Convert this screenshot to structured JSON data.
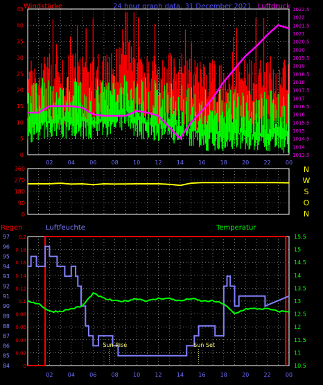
{
  "header": {
    "left_title": "Windstärke",
    "center_title": "24 hour graph data, 31 December 2021",
    "right_title": "Luftdruck"
  },
  "colors": {
    "wind_gust": "#ff0000",
    "wind_avg": "#00ff00",
    "pressure": "#ff00ff",
    "direction": "#ffff00",
    "humidity": "#8080ff",
    "temperature": "#00ff00",
    "rain": "#ff0000",
    "grid": "#ffffff",
    "axis_text_left": "#ff0000",
    "axis_text_right": "#ff00ff",
    "time_labels": "#7070ff",
    "panel_bg": "#000000"
  },
  "chart_data": [
    {
      "type": "bar",
      "name": "wind-and-pressure",
      "title": "24 hour graph data, 31 December 2021",
      "ylabel_left": "Windstärke",
      "ylabel_right": "Luftdruck",
      "x_ticks": [
        "02",
        "04",
        "06",
        "08",
        "10",
        "12",
        "14",
        "16",
        "18",
        "20",
        "22",
        "00"
      ],
      "y_left_ticks": [
        "0",
        "5",
        "10",
        "15",
        "20",
        "25",
        "30",
        "35",
        "40",
        "45"
      ],
      "y_left_range": [
        0,
        45
      ],
      "y_right_ticks": [
        "1013.5",
        "1014",
        "1014.5",
        "1015",
        "1015.5",
        "1016",
        "1016.5",
        "1017",
        "1017.5",
        "1018",
        "1018.5",
        "1019",
        "1019.5",
        "1020",
        "1020.5",
        "1021",
        "1021.5",
        "1022",
        "1022.5"
      ],
      "y_right_range": [
        1013.5,
        1022.5
      ],
      "pressure_series": {
        "hours": [
          0,
          1,
          2,
          3,
          4,
          5,
          6,
          7,
          8,
          9,
          10,
          11,
          12,
          13,
          14,
          15,
          16,
          17,
          18,
          19,
          20,
          21,
          22,
          23,
          24
        ],
        "values": [
          1016.1,
          1016.1,
          1016.5,
          1016.5,
          1016.5,
          1016.4,
          1016.0,
          1015.9,
          1015.9,
          1015.9,
          1016.2,
          1016.1,
          1015.9,
          1015.2,
          1014.5,
          1015.5,
          1016.2,
          1017.0,
          1018.0,
          1018.8,
          1019.6,
          1020.2,
          1020.9,
          1021.5,
          1021.3
        ]
      },
      "wind_avg_profile": {
        "hours": [
          0,
          2,
          4,
          6,
          8,
          9,
          10,
          12,
          14,
          16,
          18,
          20,
          22,
          24
        ],
        "values": [
          14,
          16,
          16,
          15,
          17,
          19,
          16,
          15,
          14,
          12,
          12,
          12,
          12,
          11
        ]
      },
      "wind_gust_profile": {
        "hours": [
          0,
          2,
          4,
          6,
          8,
          9,
          10,
          12,
          14,
          16,
          18,
          20,
          22,
          24
        ],
        "values": [
          20,
          22,
          22,
          21,
          24,
          28,
          24,
          22,
          22,
          20,
          20,
          20,
          21,
          20
        ]
      }
    },
    {
      "type": "line",
      "name": "wind-direction",
      "y_ticks": [
        "0",
        "90",
        "180",
        "270",
        "360"
      ],
      "y_range": [
        0,
        360
      ],
      "y_right_labels": [
        "N",
        "W",
        "S",
        "O",
        "N"
      ],
      "series": [
        {
          "hours": [
            0,
            2,
            3,
            4,
            5,
            6,
            7,
            8,
            10,
            12,
            13,
            14,
            15,
            16,
            18,
            20,
            22,
            24
          ],
          "values": [
            240,
            240,
            245,
            238,
            240,
            233,
            240,
            238,
            240,
            240,
            236,
            228,
            245,
            250,
            250,
            250,
            250,
            248
          ]
        }
      ]
    },
    {
      "type": "line",
      "name": "rain-humidity-temperature",
      "left_label": "Regen",
      "mid_label": "Luftfeuchte",
      "right_label": "Temperatur",
      "humidity_ticks": [
        "84",
        "85",
        "86",
        "87",
        "88",
        "89",
        "90",
        "91",
        "92",
        "93",
        "94",
        "95",
        "96",
        "97"
      ],
      "humidity_range": [
        84,
        97
      ],
      "rain_ticks": [
        "0",
        "0.02",
        "0.04",
        "0.06",
        "0.08",
        "0.1",
        "0.12",
        "0.14",
        "0.16",
        "0.18",
        "0.2"
      ],
      "rain_range": [
        0,
        0.2
      ],
      "temp_ticks": [
        "10.5",
        "11",
        "11.5",
        "12",
        "12.5",
        "13",
        "13.5",
        "14",
        "14.5",
        "15",
        "15.5"
      ],
      "temp_range": [
        10.5,
        15.5
      ],
      "annotations": [
        {
          "text": "Sun Rise",
          "hour": 7.5
        },
        {
          "text": "Sun Set",
          "hour": 15.7
        }
      ],
      "humidity_series": {
        "hours": [
          0,
          0.3,
          0.3,
          0.8,
          0.8,
          1.6,
          1.6,
          2.0,
          2.0,
          2.7,
          2.7,
          3.4,
          3.4,
          4.0,
          4.0,
          4.4,
          4.4,
          4.6,
          4.6,
          4.9,
          4.9,
          5.3,
          5.3,
          5.6,
          5.6,
          6.0,
          6.0,
          6.5,
          6.5,
          7.8,
          7.8,
          8.3,
          8.3,
          9.7,
          9.7,
          14.6,
          14.6,
          15.3,
          15.3,
          15.7,
          15.7,
          17.2,
          17.2,
          18.0,
          18.0,
          18.3,
          18.3,
          18.6,
          18.6,
          19.0,
          19.0,
          19.4,
          19.4,
          21.8,
          21.8,
          24
        ],
        "values": [
          94,
          94,
          95,
          95,
          94,
          94,
          96,
          96,
          95,
          95,
          94,
          94,
          93,
          93,
          94,
          94,
          93,
          93,
          92,
          92,
          90,
          90,
          88,
          88,
          87,
          87,
          86,
          86,
          87,
          87,
          86,
          86,
          85,
          85,
          85,
          85,
          86,
          86,
          87,
          87,
          88,
          88,
          87,
          87,
          92,
          92,
          93,
          93,
          92,
          92,
          90,
          90,
          91,
          91,
          90,
          91
        ]
      },
      "temperature_series": {
        "hours": [
          0,
          1,
          2,
          3,
          4,
          5,
          6,
          7,
          8,
          9,
          10,
          11,
          12,
          13,
          14,
          15,
          16,
          17,
          18,
          19,
          20,
          21,
          22,
          23,
          24
        ],
        "values": [
          13.0,
          12.9,
          12.6,
          12.6,
          12.7,
          12.8,
          13.3,
          13.1,
          13.0,
          13.0,
          13.1,
          13.0,
          13.1,
          13.1,
          13.0,
          13.1,
          13.0,
          13.0,
          12.9,
          12.5,
          12.7,
          12.7,
          12.7,
          12.6,
          12.6
        ]
      },
      "rain_series": {
        "hours": [
          0,
          1.6,
          1.6,
          23.7,
          23.7
        ],
        "values": [
          0,
          0,
          0.2,
          0.2,
          0
        ]
      }
    }
  ]
}
